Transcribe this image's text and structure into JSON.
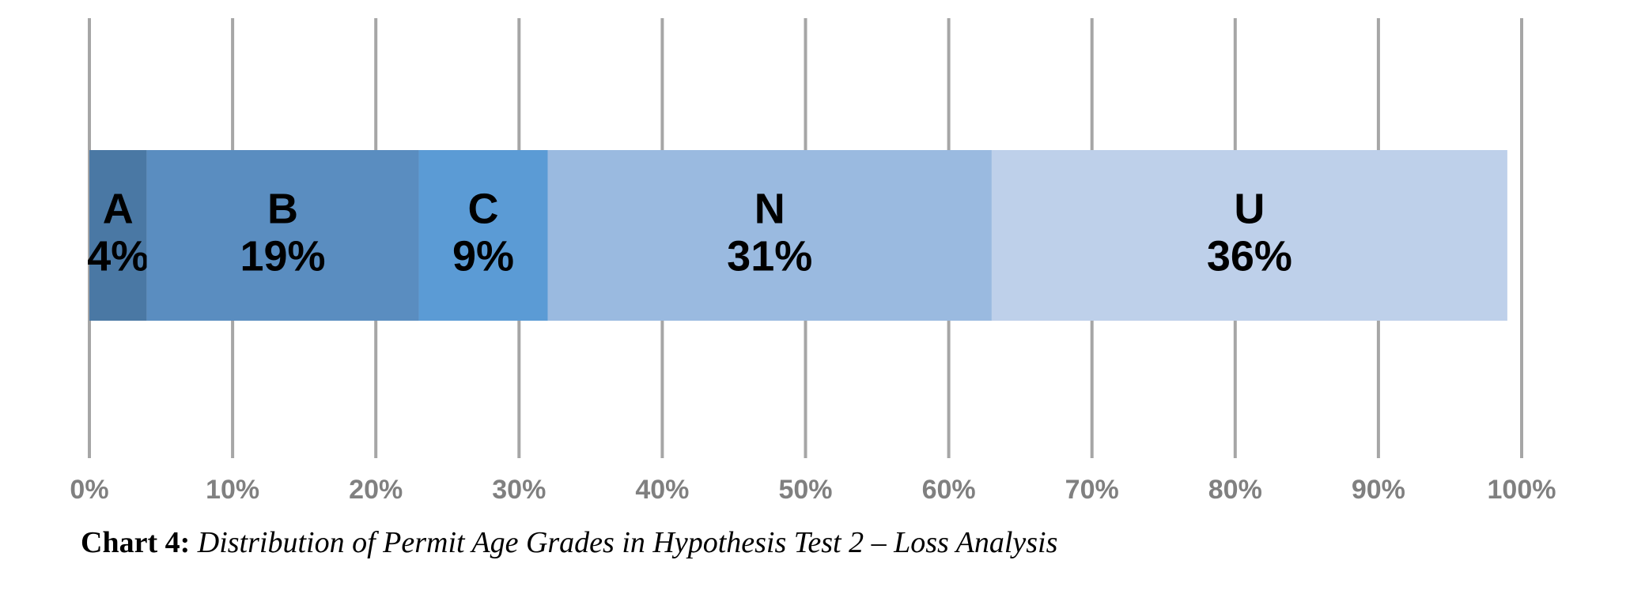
{
  "chart_data": {
    "type": "stacked_bar_horizontal",
    "caption_label": "Chart 4:",
    "caption": "Distribution of Permit Age Grades in Hypothesis Test 2 – Loss Analysis",
    "series": [
      {
        "name": "A",
        "color": "#4a78a4",
        "values": [
          4
        ],
        "value_labels": [
          "4%"
        ]
      },
      {
        "name": "B",
        "color": "#5a8dc0",
        "values": [
          19
        ],
        "value_labels": [
          "19%"
        ]
      },
      {
        "name": "C",
        "color": "#5b9bd5",
        "values": [
          9
        ],
        "value_labels": [
          "9%"
        ]
      },
      {
        "name": "N",
        "color": "#9abae0",
        "values": [
          31
        ],
        "value_labels": [
          "31%"
        ]
      },
      {
        "name": "U",
        "color": "#bed0ea",
        "values": [
          36
        ],
        "value_labels": [
          "36%"
        ]
      }
    ],
    "xlim": [
      0,
      100
    ],
    "xticks": [
      {
        "value": 0,
        "label": "0%"
      },
      {
        "value": 10,
        "label": "10%"
      },
      {
        "value": 20,
        "label": "20%"
      },
      {
        "value": 30,
        "label": "30%"
      },
      {
        "value": 40,
        "label": "40%"
      },
      {
        "value": 50,
        "label": "50%"
      },
      {
        "value": 60,
        "label": "60%"
      },
      {
        "value": 70,
        "label": "70%"
      },
      {
        "value": 80,
        "label": "80%"
      },
      {
        "value": 90,
        "label": "90%"
      },
      {
        "value": 100,
        "label": "100%"
      }
    ],
    "grid": true
  }
}
